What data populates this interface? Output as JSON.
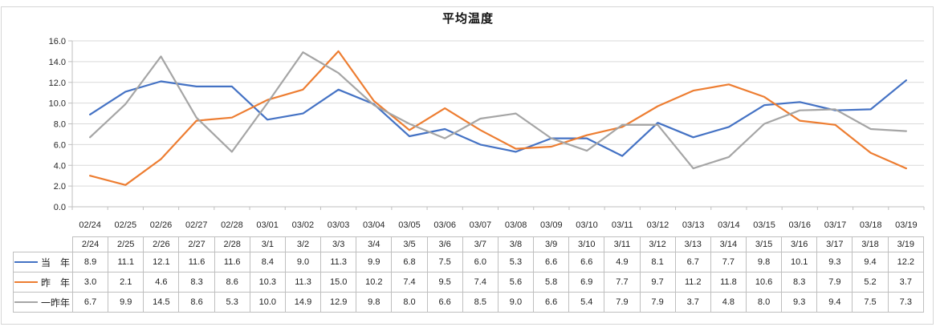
{
  "title": "平均温度",
  "chart_data": {
    "type": "line",
    "title": "平均温度",
    "x_labels": [
      "02/24",
      "02/25",
      "02/26",
      "02/27",
      "02/28",
      "03/01",
      "03/02",
      "03/03",
      "03/04",
      "03/05",
      "03/06",
      "03/07",
      "03/08",
      "03/09",
      "03/10",
      "03/11",
      "03/12",
      "03/13",
      "03/14",
      "03/15",
      "03/16",
      "03/17",
      "03/18",
      "03/19"
    ],
    "table_headers": [
      "2/24",
      "2/25",
      "2/26",
      "2/27",
      "2/28",
      "3/1",
      "3/2",
      "3/3",
      "3/4",
      "3/5",
      "3/6",
      "3/7",
      "3/8",
      "3/9",
      "3/10",
      "3/11",
      "3/12",
      "3/13",
      "3/14",
      "3/15",
      "3/16",
      "3/17",
      "3/18",
      "3/19"
    ],
    "series": [
      {
        "name": "当　年",
        "color": "#4472C4",
        "values": [
          8.9,
          11.1,
          12.1,
          11.6,
          11.6,
          8.4,
          9.0,
          11.3,
          9.9,
          6.8,
          7.5,
          6.0,
          5.3,
          6.6,
          6.6,
          4.9,
          8.1,
          6.7,
          7.7,
          9.8,
          10.1,
          9.3,
          9.4,
          12.2
        ]
      },
      {
        "name": "昨　年",
        "color": "#ED7D31",
        "values": [
          3.0,
          2.1,
          4.6,
          8.3,
          8.6,
          10.3,
          11.3,
          15.0,
          10.2,
          7.4,
          9.5,
          7.4,
          5.6,
          5.8,
          6.9,
          7.7,
          9.7,
          11.2,
          11.8,
          10.6,
          8.3,
          7.9,
          5.2,
          3.7
        ]
      },
      {
        "name": "一昨年",
        "color": "#A5A5A5",
        "values": [
          6.7,
          9.9,
          14.5,
          8.6,
          5.3,
          10.0,
          14.9,
          12.9,
          9.8,
          8.0,
          6.6,
          8.5,
          9.0,
          6.6,
          5.4,
          7.9,
          7.9,
          3.7,
          4.8,
          8.0,
          9.3,
          9.4,
          7.5,
          7.3
        ]
      }
    ],
    "ylim": [
      0,
      16
    ],
    "ytick_step": 2,
    "ytick_labels": [
      "0.0",
      "2.0",
      "4.0",
      "6.0",
      "8.0",
      "10.0",
      "12.0",
      "14.0",
      "16.0"
    ],
    "grid": true,
    "legend_position": "table-left",
    "value_decimals": 1
  },
  "colors": {
    "background": "#FFFFFF",
    "frame_border": "#D6D6D6",
    "gridline": "#D9D9D9",
    "axis": "#BFBFBF",
    "table_border": "#BFBFBF",
    "label_text": "#262626"
  }
}
